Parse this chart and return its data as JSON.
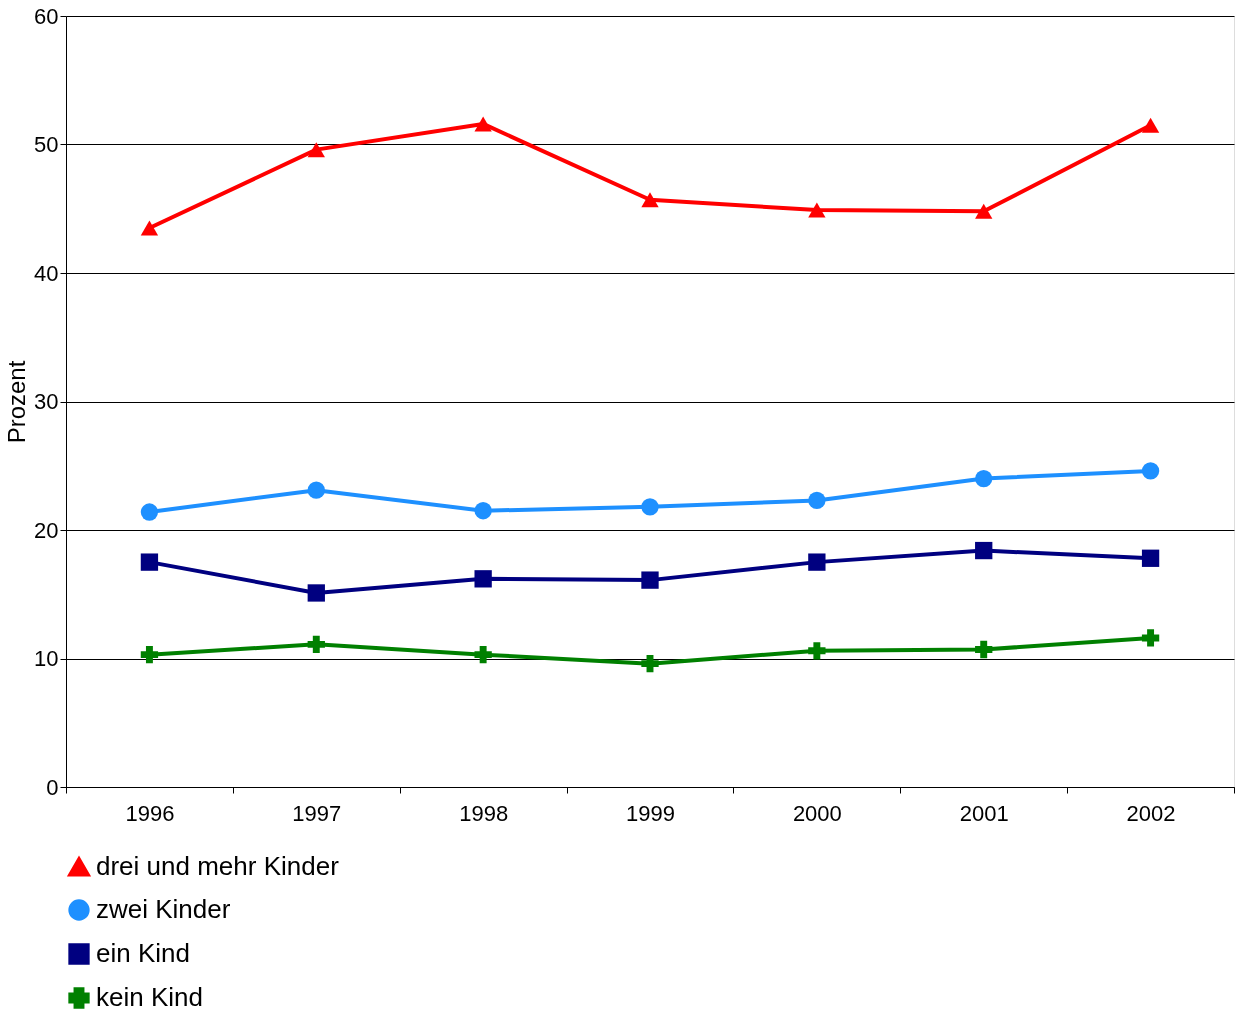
{
  "chart_data": {
    "type": "line",
    "ylabel": "Prozent",
    "categories": [
      "1996",
      "1997",
      "1998",
      "1999",
      "2000",
      "2001",
      "2002"
    ],
    "series": [
      {
        "name": "drei und mehr Kinder",
        "color": "#ff0000",
        "marker": "triangle",
        "values": [
          43.5,
          49.6,
          51.6,
          45.7,
          44.9,
          44.8,
          51.5
        ]
      },
      {
        "name": "zwei Kinder",
        "color": "#1e90ff",
        "marker": "circle",
        "values": [
          21.4,
          23.1,
          21.5,
          21.8,
          22.3,
          24.0,
          24.6
        ]
      },
      {
        "name": "ein Kind",
        "color": "#000080",
        "marker": "square",
        "values": [
          17.5,
          15.1,
          16.2,
          16.1,
          17.5,
          18.4,
          17.8
        ]
      },
      {
        "name": "kein Kind",
        "color": "#008000",
        "marker": "cross",
        "values": [
          10.3,
          11.1,
          10.3,
          9.6,
          10.6,
          10.7,
          11.6
        ]
      }
    ],
    "ylim": [
      0,
      60
    ],
    "yticks": [
      0,
      10,
      20,
      30,
      40,
      50,
      60
    ],
    "grid": "y",
    "legend": "bottom",
    "line_style": "solid"
  }
}
